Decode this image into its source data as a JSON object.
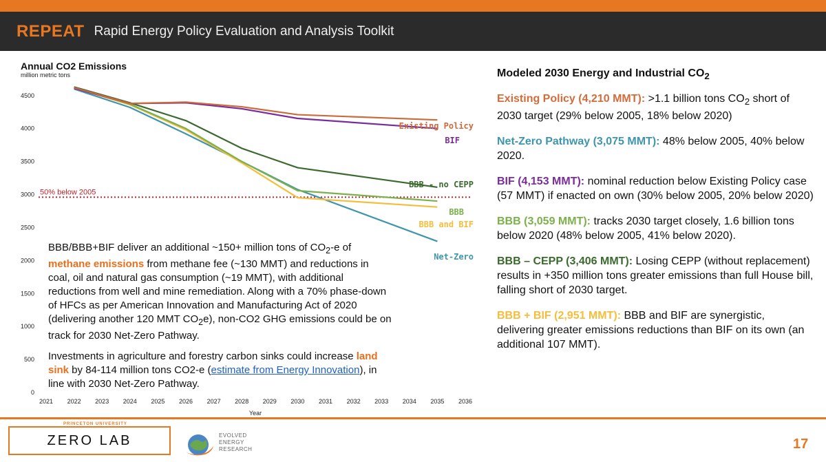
{
  "header": {
    "brand": "REPEAT",
    "subtitle": "Rapid Energy Policy Evaluation and Analysis Toolkit"
  },
  "chart_data": {
    "type": "line",
    "title": "Annual CO2 Emissions",
    "ylabel_unit": "million metric tons",
    "xlabel": "Year",
    "x_ticks": [
      2021,
      2022,
      2023,
      2024,
      2025,
      2026,
      2027,
      2028,
      2029,
      2030,
      2031,
      2032,
      2033,
      2034,
      2035,
      2036
    ],
    "y_ticks": [
      0,
      500,
      1000,
      1500,
      2000,
      2500,
      3000,
      3500,
      4000,
      4500
    ],
    "xlim": [
      2021,
      2036
    ],
    "ylim": [
      0,
      4800
    ],
    "target_line": {
      "label": "50% below 2005",
      "value": 2960,
      "color": "#c0202a"
    },
    "series": [
      {
        "name": "Existing Policy",
        "color": "#cc6a3c",
        "x": [
          2022,
          2024,
          2026,
          2028,
          2030,
          2035
        ],
        "y": [
          4620,
          4380,
          4400,
          4330,
          4210,
          4130
        ]
      },
      {
        "name": "BIF",
        "color": "#7a2d9a",
        "x": [
          2022,
          2024,
          2026,
          2028,
          2030,
          2035
        ],
        "y": [
          4610,
          4380,
          4390,
          4300,
          4153,
          4000
        ]
      },
      {
        "name": "BBB - no CEPP",
        "color": "#3b6a2e",
        "x": [
          2022,
          2024,
          2026,
          2028,
          2030,
          2035
        ],
        "y": [
          4630,
          4390,
          4120,
          3700,
          3406,
          3110
        ]
      },
      {
        "name": "BBB",
        "color": "#7bb04b",
        "x": [
          2022,
          2024,
          2026,
          2028,
          2030,
          2035
        ],
        "y": [
          4625,
          4370,
          4000,
          3500,
          3059,
          2900
        ]
      },
      {
        "name": "BBB and BIF",
        "color": "#f4be3c",
        "x": [
          2022,
          2024,
          2026,
          2028,
          2030,
          2035
        ],
        "y": [
          4620,
          4360,
          3980,
          3480,
          2951,
          2810
        ]
      },
      {
        "name": "Net-Zero",
        "color": "#3f95ad",
        "x": [
          2022,
          2024,
          2026,
          2028,
          2030,
          2035
        ],
        "y": [
          4600,
          4320,
          3920,
          3500,
          3075,
          2290
        ]
      }
    ]
  },
  "overlay": {
    "p1_a": "BBB/BBB+BIF deliver an additional ~150+ million tons of CO",
    "p1_sub": "2",
    "p1_b": "-e of",
    "p1_hl": "methane emissions",
    "p1_c": " from methane fee (~130 MMT) and reductions in coal, oil and natural gas consumption (~19 MMT), with additional reductions from well and mine remediation. Along with a 70% phase-down of HFCs as per American Innovation and Manufacturing Act of 2020 (delivering another 120 MMT CO",
    "p1_sub2": "2",
    "p1_d": "e), non-CO2 GHG emissions could be on track for 2030 Net-Zero Pathway.",
    "p2_a": "Investments in agriculture and forestry carbon sinks could increase ",
    "p2_hl": "land sink",
    "p2_b": " by 84-114 million tons CO2-e (",
    "p2_link": "estimate from Energy Innovation",
    "p2_c": "), in line with 2030 Net-Zero Pathway."
  },
  "right_panel": {
    "heading": "Modeled 2030 Energy and Industrial CO",
    "heading_sub": "2",
    "items": [
      {
        "label": "Existing Policy (4,210 MMT):",
        "text_a": " >1.1 billion tons CO",
        "sub": "2",
        "text_b": " short of 2030 target (29% below 2005, 18% below 2020)"
      },
      {
        "label": "Net-Zero Pathway (3,075 MMT):",
        "text": " 48% below 2005, 40% below 2020."
      },
      {
        "label": "BIF (4,153 MMT):",
        "text": " nominal reduction below Existing Policy case (57 MMT) if enacted on own (30% below 2005, 20% below 2020)"
      },
      {
        "label": "BBB (3,059 MMT):",
        "text": " tracks 2030 target closely, 1.6 billion tons below 2020 (48% below 2005, 41% below 2020)."
      },
      {
        "label": "BBB – CEPP (3,406 MMT):",
        "text": " Losing CEPP (without replacement) results in +350 million tons greater emissions than full House bill, falling short of 2030 target."
      },
      {
        "label": "BBB + BIF (2,951 MMT):",
        "text": " BBB and BIF are synergistic, delivering greater emissions reductions than BIF on its own (an additional 107 MMT)."
      }
    ]
  },
  "footer": {
    "university": "PRINCETON UNIVERSITY",
    "lab": "ZERO LAB",
    "partner": [
      "EVOLVED",
      "ENERGY",
      "RESEARCH"
    ],
    "page": "17"
  }
}
